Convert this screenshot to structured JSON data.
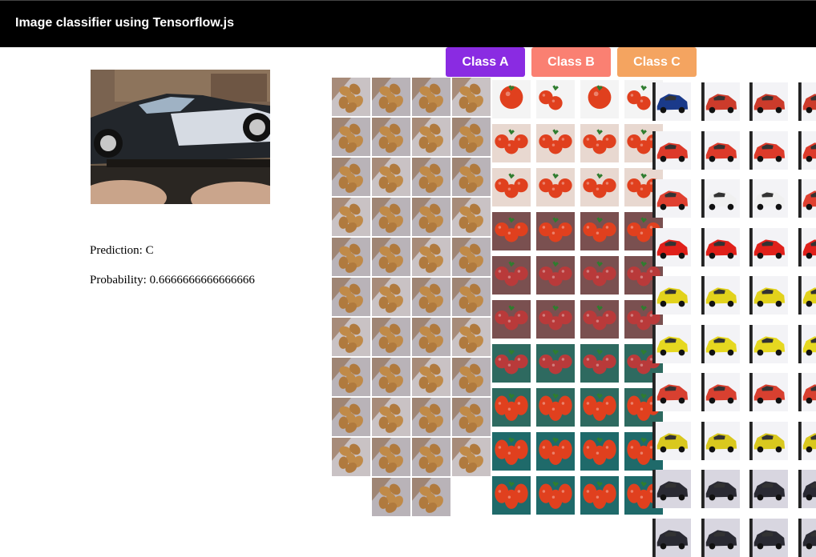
{
  "header": {
    "title": "Image classifier using Tensorflow.js"
  },
  "prediction": {
    "prediction_label": "Prediction: C",
    "probability_label": "Probability: 0.6666666666666666"
  },
  "buttons": [
    {
      "label": "Class A",
      "color": "#8a2be2"
    },
    {
      "label": "Class B",
      "color": "#fa8072"
    },
    {
      "label": "Class C",
      "color": "#f4a460"
    }
  ],
  "classes": {
    "a": {
      "subject": "almonds",
      "count": 42
    },
    "b": {
      "subject": "tomatoes",
      "count": 40
    },
    "c": {
      "subject": "cars",
      "count": 40
    }
  }
}
